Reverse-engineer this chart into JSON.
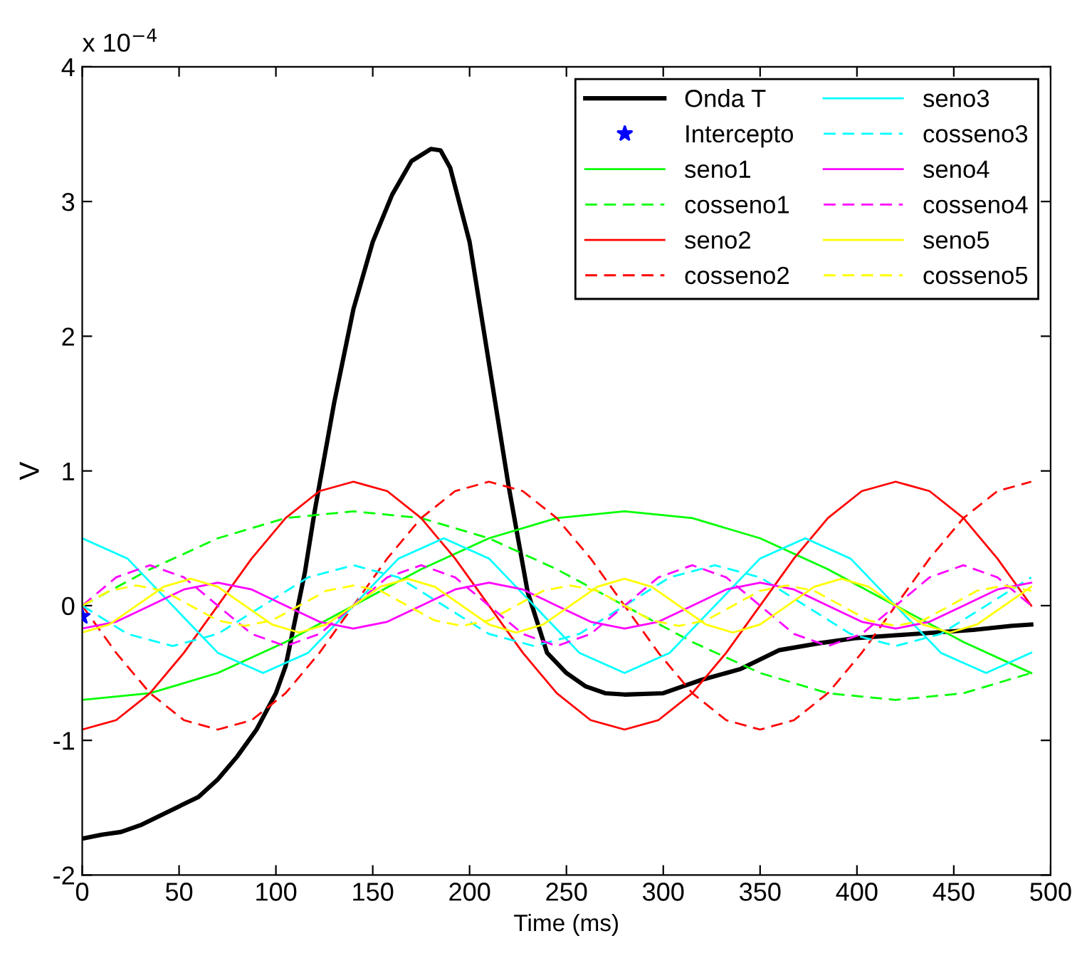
{
  "chart_data": {
    "type": "line",
    "xlabel": "Time (ms)",
    "ylabel": "V",
    "annotations": [
      "x 10$^{−4}$"
    ],
    "xlim": [
      0,
      500
    ],
    "xticks": [
      0,
      50,
      100,
      150,
      200,
      250,
      300,
      350,
      400,
      450,
      500
    ],
    "ylim": [
      -2,
      4
    ],
    "yticks": [
      -2,
      -1,
      0,
      1,
      2,
      3,
      4
    ],
    "grid": false,
    "legend": "top right",
    "series": [
      {
        "name": "Onda T",
        "color": "#000000",
        "line_style": "solid",
        "marker": "none",
        "x": [
          0,
          10,
          20,
          30,
          40,
          50,
          60,
          70,
          80,
          90,
          100,
          105,
          110,
          115,
          120,
          130,
          140,
          150,
          160,
          170,
          180,
          185,
          190,
          200,
          210,
          220,
          230,
          240,
          250,
          260,
          270,
          280,
          300,
          310,
          320,
          340,
          350,
          360,
          380,
          400,
          420,
          440,
          460,
          480,
          490
        ],
        "values": [
          -1.73,
          -1.7,
          -1.68,
          -1.63,
          -1.56,
          -1.49,
          -1.42,
          -1.29,
          -1.12,
          -0.92,
          -0.65,
          -0.45,
          -0.1,
          0.25,
          0.7,
          1.5,
          2.2,
          2.7,
          3.05,
          3.3,
          3.39,
          3.38,
          3.25,
          2.7,
          1.8,
          0.9,
          0.1,
          -0.35,
          -0.5,
          -0.6,
          -0.65,
          -0.66,
          -0.65,
          -0.6,
          -0.55,
          -0.47,
          -0.4,
          -0.33,
          -0.28,
          -0.24,
          -0.22,
          -0.2,
          -0.18,
          -0.15,
          -0.14
        ]
      },
      {
        "name": "Intercepto",
        "color": "#0000ff",
        "type": "scatter",
        "marker": "star",
        "x": [
          0
        ],
        "values": [
          -0.08
        ]
      },
      {
        "name": "seno1",
        "color": "#00ff00",
        "line_style": "solid",
        "marker": "none",
        "x": [
          0,
          35,
          70,
          105,
          140,
          175,
          210,
          245,
          280,
          315,
          350,
          385,
          420,
          455,
          490
        ],
        "values": [
          -0.7,
          -0.65,
          -0.5,
          -0.27,
          0,
          0.27,
          0.5,
          0.65,
          0.7,
          0.65,
          0.5,
          0.27,
          0,
          -0.27,
          -0.5
        ]
      },
      {
        "name": "cosseno1",
        "color": "#00ff00",
        "line_style": "dashed",
        "marker": "none",
        "x": [
          0,
          35,
          70,
          105,
          140,
          175,
          210,
          245,
          280,
          315,
          350,
          385,
          420,
          455,
          490
        ],
        "values": [
          0,
          0.27,
          0.5,
          0.65,
          0.7,
          0.65,
          0.5,
          0.27,
          0,
          -0.27,
          -0.5,
          -0.65,
          -0.7,
          -0.65,
          -0.5
        ]
      },
      {
        "name": "seno2",
        "color": "#ff0000",
        "line_style": "solid",
        "marker": "none",
        "x": [
          0,
          17.5,
          35,
          52.5,
          70,
          87.5,
          105,
          122.5,
          140,
          157.5,
          175,
          192.5,
          210,
          227.5,
          245,
          262.5,
          280,
          297.5,
          315,
          332.5,
          350,
          367.5,
          385,
          402.5,
          420,
          437.5,
          455,
          472.5,
          490
        ],
        "values": [
          -0.92,
          -0.85,
          -0.65,
          -0.35,
          0,
          0.35,
          0.65,
          0.85,
          0.92,
          0.85,
          0.65,
          0.35,
          0,
          -0.35,
          -0.65,
          -0.85,
          -0.92,
          -0.85,
          -0.65,
          -0.35,
          0,
          0.35,
          0.65,
          0.85,
          0.92,
          0.85,
          0.65,
          0.35,
          0
        ]
      },
      {
        "name": "cosseno2",
        "color": "#ff0000",
        "line_style": "dashed",
        "marker": "none",
        "x": [
          0,
          17.5,
          35,
          52.5,
          70,
          87.5,
          105,
          122.5,
          140,
          157.5,
          175,
          192.5,
          210,
          227.5,
          245,
          262.5,
          280,
          297.5,
          315,
          332.5,
          350,
          367.5,
          385,
          402.5,
          420,
          437.5,
          455,
          472.5,
          490
        ],
        "values": [
          0,
          -0.35,
          -0.65,
          -0.85,
          -0.92,
          -0.85,
          -0.65,
          -0.35,
          0,
          0.35,
          0.65,
          0.85,
          0.92,
          0.85,
          0.65,
          0.35,
          0,
          -0.35,
          -0.65,
          -0.85,
          -0.92,
          -0.85,
          -0.65,
          -0.35,
          0,
          0.35,
          0.65,
          0.85,
          0.92
        ]
      },
      {
        "name": "seno3",
        "color": "#00ffff",
        "line_style": "solid",
        "marker": "none",
        "x": [
          0,
          23.33,
          46.67,
          70,
          93.33,
          116.67,
          140,
          163.33,
          186.67,
          210,
          233.33,
          256.67,
          280,
          303.33,
          326.67,
          350,
          373.33,
          396.67,
          420,
          443.33,
          466.67,
          490
        ],
        "values": [
          0.5,
          0.35,
          0,
          -0.35,
          -0.5,
          -0.35,
          0,
          0.35,
          0.5,
          0.35,
          0,
          -0.35,
          -0.5,
          -0.35,
          0,
          0.35,
          0.5,
          0.35,
          0,
          -0.35,
          -0.5,
          -0.35
        ]
      },
      {
        "name": "cosseno3",
        "color": "#00ffff",
        "line_style": "dashed",
        "marker": "none",
        "x": [
          0,
          23.33,
          46.67,
          70,
          93.33,
          116.67,
          140,
          163.33,
          186.67,
          210,
          233.33,
          256.67,
          280,
          303.33,
          326.67,
          350,
          373.33,
          396.67,
          420,
          443.33,
          466.67,
          490
        ],
        "values": [
          0,
          -0.21,
          -0.3,
          -0.21,
          0,
          0.21,
          0.3,
          0.21,
          0,
          -0.21,
          -0.3,
          -0.21,
          0,
          0.21,
          0.3,
          0.21,
          0,
          -0.21,
          -0.3,
          -0.21,
          0,
          0.21
        ]
      },
      {
        "name": "seno4",
        "color": "#ff00ff",
        "line_style": "solid",
        "marker": "none",
        "x": [
          0,
          17.5,
          35,
          52.5,
          70,
          87.5,
          105,
          122.5,
          140,
          157.5,
          175,
          192.5,
          210,
          227.5,
          245,
          262.5,
          280,
          297.5,
          315,
          332.5,
          350,
          367.5,
          385,
          402.5,
          420,
          437.5,
          455,
          472.5,
          490
        ],
        "values": [
          -0.17,
          -0.12,
          0,
          0.12,
          0.17,
          0.12,
          0,
          -0.12,
          -0.17,
          -0.12,
          0,
          0.12,
          0.17,
          0.12,
          0,
          -0.12,
          -0.17,
          -0.12,
          0,
          0.12,
          0.17,
          0.12,
          0,
          -0.12,
          -0.17,
          -0.12,
          0,
          0.12,
          0.17
        ]
      },
      {
        "name": "cosseno4",
        "color": "#ff00ff",
        "line_style": "dashed",
        "marker": "none",
        "x": [
          0,
          17.5,
          35,
          52.5,
          70,
          87.5,
          105,
          122.5,
          140,
          157.5,
          175,
          192.5,
          210,
          227.5,
          245,
          262.5,
          280,
          297.5,
          315,
          332.5,
          350,
          367.5,
          385,
          402.5,
          420,
          437.5,
          455,
          472.5,
          490
        ],
        "values": [
          0,
          0.21,
          0.3,
          0.21,
          0,
          -0.21,
          -0.3,
          -0.21,
          0,
          0.21,
          0.3,
          0.21,
          0,
          -0.21,
          -0.3,
          -0.21,
          0,
          0.21,
          0.3,
          0.21,
          0,
          -0.21,
          -0.3,
          -0.21,
          0,
          0.21,
          0.3,
          0.21,
          0
        ]
      },
      {
        "name": "seno5",
        "color": "#ffff00",
        "line_style": "solid",
        "marker": "none",
        "x": [
          0,
          14,
          28,
          42,
          56,
          70,
          84,
          98,
          112,
          126,
          140,
          154,
          168,
          182,
          196,
          210,
          224,
          238,
          252,
          266,
          280,
          294,
          308,
          322,
          336,
          350,
          364,
          378,
          392,
          406,
          420,
          434,
          448,
          462,
          476,
          490
        ],
        "values": [
          -0.2,
          -0.14,
          0,
          0.14,
          0.2,
          0.14,
          0,
          -0.14,
          -0.2,
          -0.14,
          0,
          0.14,
          0.2,
          0.14,
          0,
          -0.14,
          -0.2,
          -0.14,
          0,
          0.14,
          0.2,
          0.14,
          0,
          -0.14,
          -0.2,
          -0.14,
          0,
          0.14,
          0.2,
          0.14,
          0,
          -0.14,
          -0.2,
          -0.14,
          0,
          0.14
        ]
      },
      {
        "name": "cosseno5",
        "color": "#ffff00",
        "line_style": "dashed",
        "marker": "none",
        "x": [
          0,
          14,
          28,
          42,
          56,
          70,
          84,
          98,
          112,
          126,
          140,
          154,
          168,
          182,
          196,
          210,
          224,
          238,
          252,
          266,
          280,
          294,
          308,
          322,
          336,
          350,
          364,
          378,
          392,
          406,
          420,
          434,
          448,
          462,
          476,
          490
        ],
        "values": [
          0,
          0.11,
          0.15,
          0.11,
          0,
          -0.11,
          -0.15,
          -0.11,
          0,
          0.11,
          0.15,
          0.11,
          0,
          -0.11,
          -0.15,
          -0.11,
          0,
          0.11,
          0.15,
          0.11,
          0,
          -0.11,
          -0.15,
          -0.11,
          0,
          0.11,
          0.15,
          0.11,
          0,
          -0.11,
          -0.15,
          -0.11,
          0,
          0.11,
          0.15,
          0.11
        ]
      }
    ]
  }
}
